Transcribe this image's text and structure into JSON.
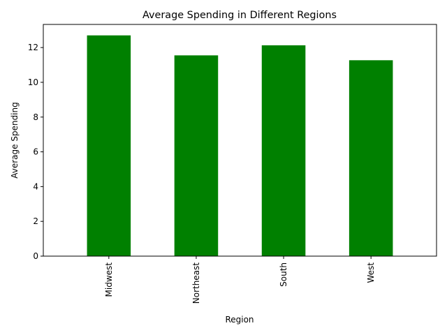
{
  "chart_data": {
    "type": "bar",
    "title": "Average Spending in Different Regions",
    "xlabel": "Region",
    "ylabel": "Average Spending",
    "categories": [
      "Midwest",
      "Northeast",
      "South",
      "West"
    ],
    "values": [
      12.7,
      11.55,
      12.13,
      11.27
    ],
    "ylim": [
      0,
      13.33
    ],
    "yticks": [
      0,
      2,
      4,
      6,
      8,
      10,
      12
    ],
    "ytick_labels": [
      "0",
      "2",
      "4",
      "6",
      "8",
      "10",
      "12"
    ],
    "bar_color": "#008000",
    "grid": false,
    "legend": "none"
  }
}
